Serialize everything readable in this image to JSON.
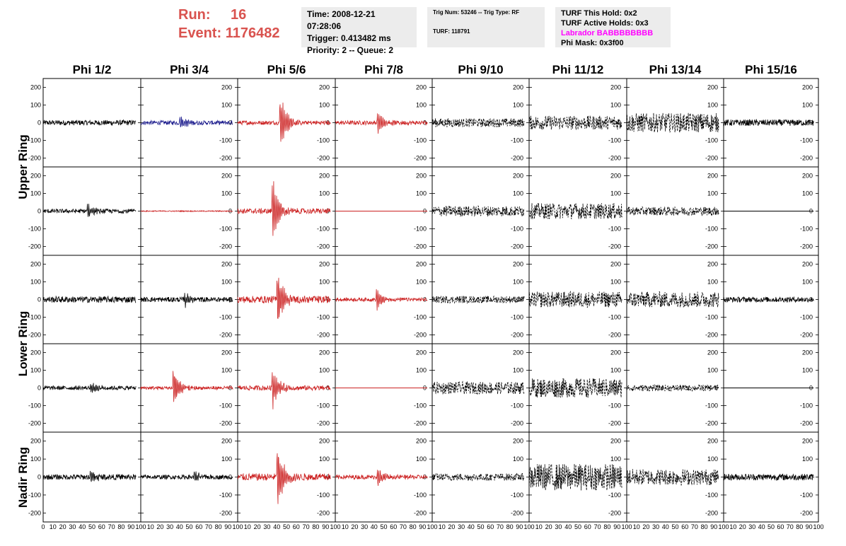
{
  "header": {
    "run_label": "Run:",
    "run_value": "16",
    "event_label": "Event:",
    "event_value": "1176482",
    "time": "Time: 2008-12-21 07:28:06",
    "trigger": "Trigger: 0.413482 ms",
    "priority": "Priority: 2 -- Queue: 2",
    "trig_num": "Trig Num: 53246 -- Trig Type: RF",
    "turf": "TURF: 118791",
    "turf_hold": "TURF This Hold: 0x2",
    "turf_active": "TURF Active Holds: 0x3",
    "labrador": "Labrador BABBBBBBBB",
    "phi_mask": "Phi Mask: 0x3f00"
  },
  "colors": {
    "run": "#d9534f",
    "red": "#cc2222",
    "blue": "#1a1a8c",
    "black": "#000000",
    "magenta": "#ff00ff"
  },
  "chart_data": {
    "type": "line",
    "phi_labels": [
      "Phi 1/2",
      "Phi 3/4",
      "Phi 5/6",
      "Phi 7/8",
      "Phi 9/10",
      "Phi 11/12",
      "Phi 13/14",
      "Phi 15/16"
    ],
    "ring_labels": [
      "Upper Ring",
      "Lower Ring",
      "Nadir Ring"
    ],
    "xlim": [
      0,
      100
    ],
    "ylim": [
      -250,
      250
    ],
    "yticks": [
      -200,
      -100,
      0,
      100,
      200
    ],
    "xticks": [
      0,
      10,
      20,
      30,
      40,
      50,
      60,
      70,
      80,
      90,
      100
    ],
    "panels": [
      [
        {
          "color": "black",
          "style": "solid",
          "amp": 15,
          "burst": 0,
          "t0": 0
        },
        {
          "color": "blue",
          "style": "solid",
          "amp": 12,
          "burst": 55,
          "t0": 40
        },
        {
          "color": "red",
          "style": "solid",
          "amp": 12,
          "burst": 210,
          "t0": 43
        },
        {
          "color": "red",
          "style": "solid",
          "amp": 12,
          "burst": 70,
          "t0": 43
        },
        {
          "color": "black",
          "style": "dashed",
          "amp": 25,
          "burst": 0,
          "t0": 0
        },
        {
          "color": "black",
          "style": "dashed",
          "amp": 40,
          "burst": 0,
          "t0": 0
        },
        {
          "color": "black",
          "style": "dashed",
          "amp": 55,
          "burst": 0,
          "t0": 0
        },
        {
          "color": "black",
          "style": "solid",
          "amp": 18,
          "burst": 0,
          "t0": 0
        }
      ],
      [
        {
          "color": "black",
          "style": "solid",
          "amp": 12,
          "burst": 50,
          "t0": 45
        },
        {
          "color": "red",
          "style": "solid",
          "amp": 3,
          "burst": 0,
          "t0": 0
        },
        {
          "color": "red",
          "style": "solid",
          "amp": 15,
          "burst": 225,
          "t0": 35
        },
        {
          "color": "red",
          "style": "flat",
          "amp": 0,
          "burst": 0,
          "t0": 0
        },
        {
          "color": "black",
          "style": "dashed",
          "amp": 30,
          "burst": 0,
          "t0": 0
        },
        {
          "color": "black",
          "style": "dashed",
          "amp": 45,
          "burst": 0,
          "t0": 0
        },
        {
          "color": "black",
          "style": "dashed",
          "amp": 25,
          "burst": 0,
          "t0": 0
        },
        {
          "color": "black",
          "style": "flat",
          "amp": 0,
          "burst": 0,
          "t0": 0
        }
      ],
      [
        {
          "color": "black",
          "style": "solid",
          "amp": 18,
          "burst": 0,
          "t0": 0
        },
        {
          "color": "black",
          "style": "solid",
          "amp": 14,
          "burst": 45,
          "t0": 45
        },
        {
          "color": "red",
          "style": "solid",
          "amp": 20,
          "burst": 220,
          "t0": 40
        },
        {
          "color": "red",
          "style": "solid",
          "amp": 10,
          "burst": 85,
          "t0": 42
        },
        {
          "color": "black",
          "style": "dashed",
          "amp": 20,
          "burst": 0,
          "t0": 0
        },
        {
          "color": "black",
          "style": "dashed",
          "amp": 45,
          "burst": 0,
          "t0": 0
        },
        {
          "color": "black",
          "style": "dashed",
          "amp": 45,
          "burst": 0,
          "t0": 0
        },
        {
          "color": "black",
          "style": "solid",
          "amp": 15,
          "burst": 0,
          "t0": 0
        }
      ],
      [
        {
          "color": "black",
          "style": "solid",
          "amp": 12,
          "burst": 40,
          "t0": 48
        },
        {
          "color": "red",
          "style": "solid",
          "amp": 10,
          "burst": 140,
          "t0": 33
        },
        {
          "color": "red",
          "style": "solid",
          "amp": 14,
          "burst": 150,
          "t0": 35
        },
        {
          "color": "red",
          "style": "flat",
          "amp": 0,
          "burst": 0,
          "t0": 0
        },
        {
          "color": "black",
          "style": "dashed",
          "amp": 35,
          "burst": 0,
          "t0": 0
        },
        {
          "color": "black",
          "style": "dashed",
          "amp": 55,
          "burst": 0,
          "t0": 0
        },
        {
          "color": "black",
          "style": "dashed",
          "amp": 18,
          "burst": 0,
          "t0": 0
        },
        {
          "color": "black",
          "style": "flat",
          "amp": 0,
          "burst": 0,
          "t0": 0
        }
      ],
      [
        {
          "color": "black",
          "style": "solid",
          "amp": 15,
          "burst": 40,
          "t0": 48
        },
        {
          "color": "black",
          "style": "solid",
          "amp": 12,
          "burst": 40,
          "t0": 55
        },
        {
          "color": "red",
          "style": "solid",
          "amp": 20,
          "burst": 235,
          "t0": 40
        },
        {
          "color": "red",
          "style": "solid",
          "amp": 12,
          "burst": 70,
          "t0": 43
        },
        {
          "color": "black",
          "style": "dashed",
          "amp": 20,
          "burst": 0,
          "t0": 0
        },
        {
          "color": "black",
          "style": "dashed",
          "amp": 75,
          "burst": 0,
          "t0": 0
        },
        {
          "color": "black",
          "style": "dashed",
          "amp": 45,
          "burst": 0,
          "t0": 0
        },
        {
          "color": "black",
          "style": "solid",
          "amp": 18,
          "burst": 0,
          "t0": 0
        }
      ]
    ]
  }
}
